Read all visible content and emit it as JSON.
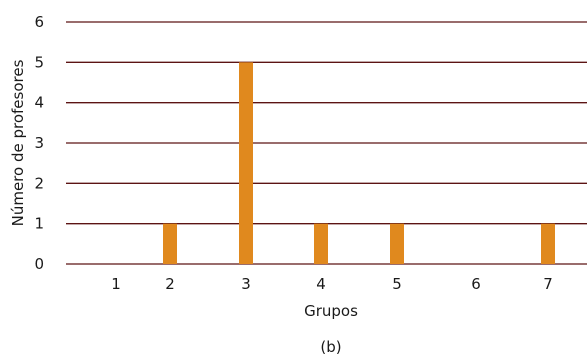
{
  "chart_data": {
    "type": "bar",
    "categories": [
      "1",
      "2",
      "3",
      "4",
      "5",
      "6",
      "7"
    ],
    "values": [
      0,
      1,
      5,
      1,
      1,
      0,
      1
    ],
    "xlabel": "Grupos",
    "ylabel": "Número de profesores",
    "caption": "(b)",
    "ylim": [
      0,
      6
    ],
    "yticks": [
      "0",
      "1",
      "2",
      "3",
      "4",
      "5",
      "6"
    ],
    "grid": true,
    "legend": "none",
    "colors": {
      "bar": "#e0891e",
      "grid": "#5c1414",
      "text": "#1a1a1a"
    }
  }
}
